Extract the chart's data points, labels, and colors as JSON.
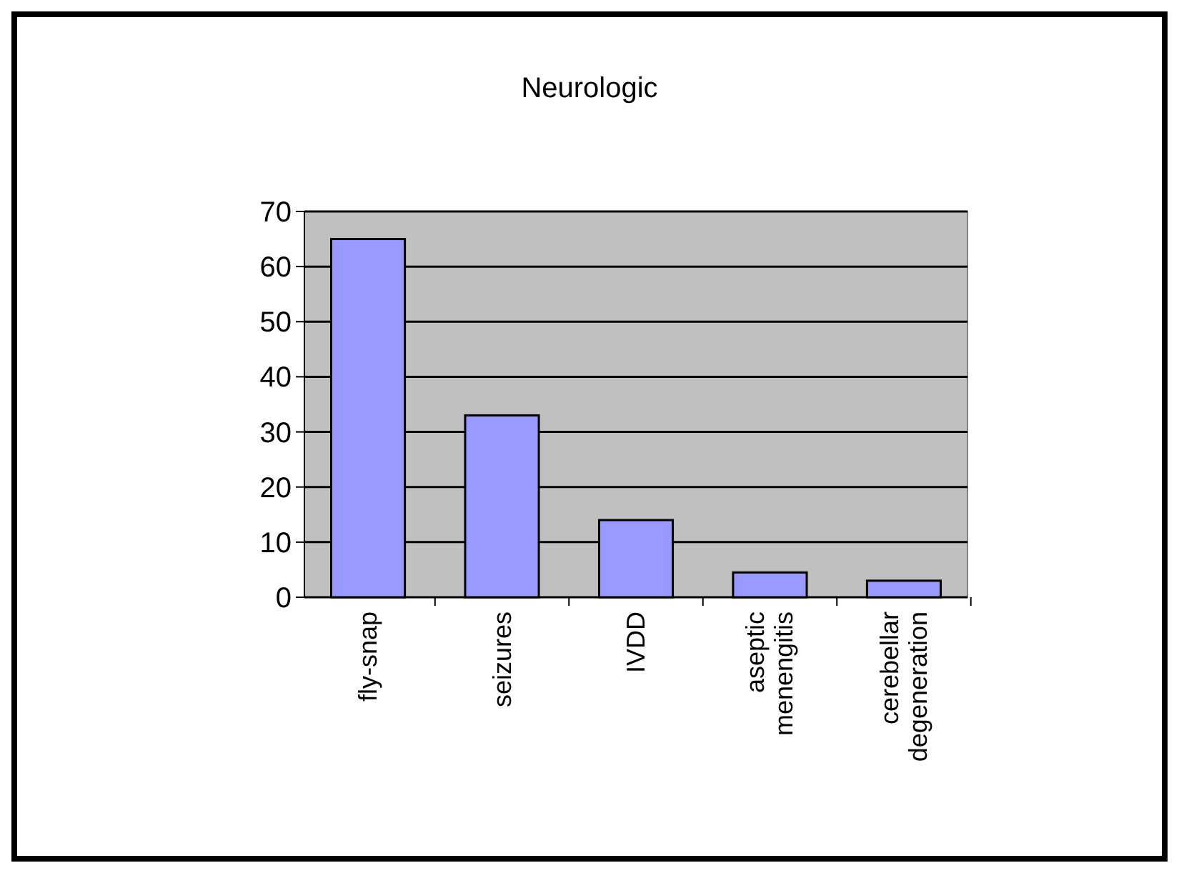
{
  "chart_data": {
    "type": "bar",
    "title": "Neurologic",
    "categories": [
      "fly-snap",
      "seizures",
      "IVDD",
      "aseptic menengitis",
      "cerebellar degeneration"
    ],
    "values": [
      65,
      33,
      14,
      4.5,
      3
    ],
    "color": "#9999ff",
    "ylim": [
      0,
      70
    ],
    "yticks": [
      0,
      10,
      20,
      30,
      40,
      50,
      60,
      70
    ],
    "grid": "y"
  }
}
